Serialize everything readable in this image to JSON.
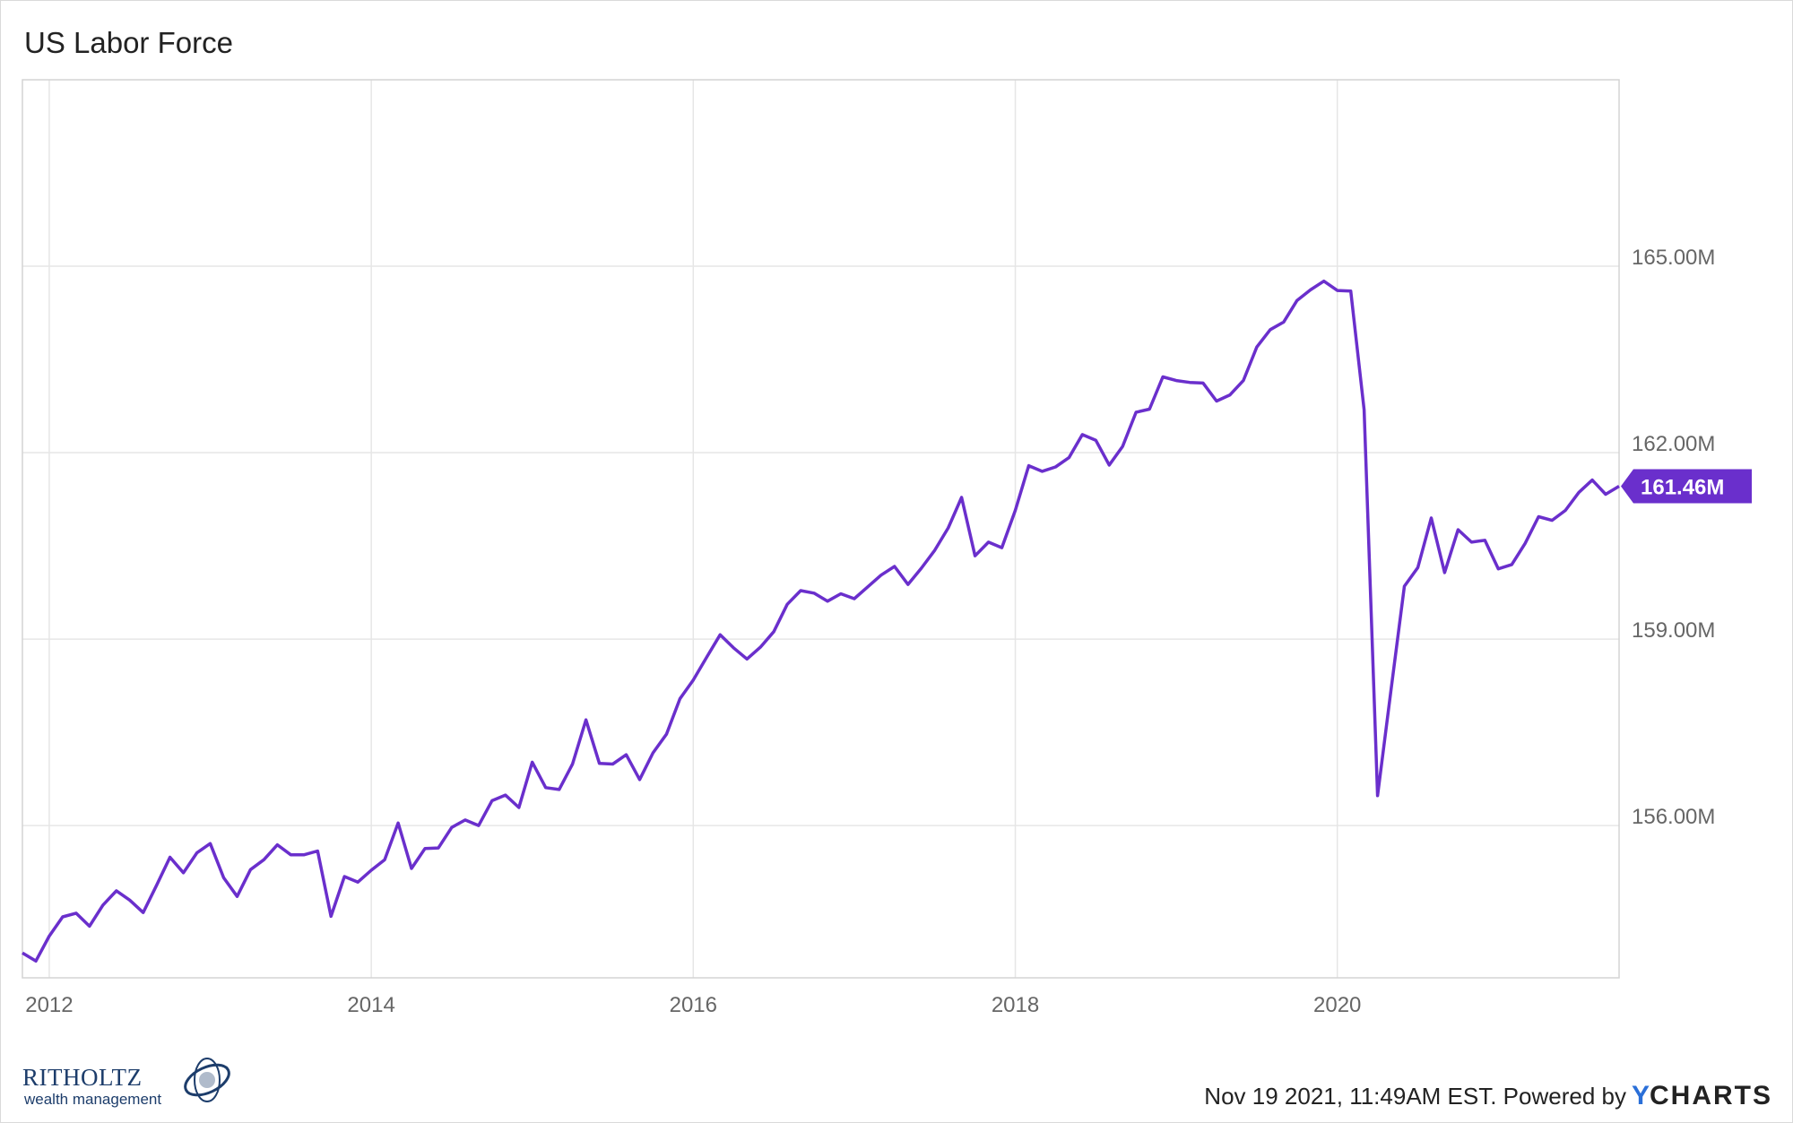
{
  "title": "US Labor Force",
  "footer": {
    "timestamp": "Nov 19 2021, 11:49AM EST. Powered by",
    "brand_y": "Y",
    "brand_rest": "CHARTS"
  },
  "logo": {
    "name": "RITHOLTZ",
    "subtitle": "wealth management"
  },
  "colors": {
    "series": "#6a2fcc",
    "grid": "#e6e6e6",
    "axis_text": "#666666",
    "brand_blue": "#2a6fd8"
  },
  "chart_data": {
    "type": "line",
    "title": "US Labor Force",
    "xlabel": "",
    "ylabel": "",
    "x_ticks": [
      "2012",
      "2014",
      "2016",
      "2018",
      "2020"
    ],
    "y_ticks": [
      "156.00M",
      "159.00M",
      "162.00M",
      "165.00M"
    ],
    "y_tick_values": [
      156,
      159,
      162,
      165
    ],
    "xlim": [
      "2011-11",
      "2021-10"
    ],
    "ylim": [
      153.55,
      168.0
    ],
    "grid": true,
    "last_value_label": "161.46M",
    "series": [
      {
        "name": "",
        "unit": "M",
        "x": [
          "2011-11",
          "2011-12",
          "2012-01",
          "2012-02",
          "2012-03",
          "2012-04",
          "2012-05",
          "2012-06",
          "2012-07",
          "2012-08",
          "2012-09",
          "2012-10",
          "2012-11",
          "2012-12",
          "2013-01",
          "2013-02",
          "2013-03",
          "2013-04",
          "2013-05",
          "2013-06",
          "2013-07",
          "2013-08",
          "2013-09",
          "2013-10",
          "2013-11",
          "2013-12",
          "2014-01",
          "2014-02",
          "2014-03",
          "2014-04",
          "2014-05",
          "2014-06",
          "2014-07",
          "2014-08",
          "2014-09",
          "2014-10",
          "2014-11",
          "2014-12",
          "2015-01",
          "2015-02",
          "2015-03",
          "2015-04",
          "2015-05",
          "2015-06",
          "2015-07",
          "2015-08",
          "2015-09",
          "2015-10",
          "2015-11",
          "2015-12",
          "2016-01",
          "2016-02",
          "2016-03",
          "2016-04",
          "2016-05",
          "2016-06",
          "2016-07",
          "2016-08",
          "2016-09",
          "2016-10",
          "2016-11",
          "2016-12",
          "2017-01",
          "2017-02",
          "2017-03",
          "2017-04",
          "2017-05",
          "2017-06",
          "2017-07",
          "2017-08",
          "2017-09",
          "2017-10",
          "2017-11",
          "2017-12",
          "2018-01",
          "2018-02",
          "2018-03",
          "2018-04",
          "2018-05",
          "2018-06",
          "2018-07",
          "2018-08",
          "2018-09",
          "2018-10",
          "2018-11",
          "2018-12",
          "2019-01",
          "2019-02",
          "2019-03",
          "2019-04",
          "2019-05",
          "2019-06",
          "2019-07",
          "2019-08",
          "2019-09",
          "2019-10",
          "2019-11",
          "2019-12",
          "2020-01",
          "2020-02",
          "2020-03",
          "2020-04",
          "2020-05",
          "2020-06",
          "2020-07",
          "2020-08",
          "2020-09",
          "2020-10",
          "2020-11",
          "2020-12",
          "2021-01",
          "2021-02",
          "2021-03",
          "2021-04",
          "2021-05",
          "2021-06",
          "2021-07",
          "2021-08",
          "2021-09",
          "2021-10"
        ],
        "values": [
          153.95,
          153.82,
          154.22,
          154.53,
          154.59,
          154.38,
          154.72,
          154.95,
          154.8,
          154.6,
          155.04,
          155.49,
          155.24,
          155.56,
          155.71,
          155.16,
          154.86,
          155.29,
          155.45,
          155.69,
          155.53,
          155.53,
          155.59,
          154.54,
          155.18,
          155.09,
          155.28,
          155.45,
          156.04,
          155.31,
          155.63,
          155.64,
          155.97,
          156.09,
          156.0,
          156.4,
          156.49,
          156.29,
          157.02,
          156.61,
          156.58,
          156.99,
          157.7,
          157.0,
          156.99,
          157.14,
          156.74,
          157.17,
          157.47,
          158.04,
          158.34,
          158.71,
          159.07,
          158.86,
          158.68,
          158.87,
          159.12,
          159.56,
          159.78,
          159.74,
          159.61,
          159.73,
          159.65,
          159.84,
          160.03,
          160.17,
          159.88,
          160.14,
          160.43,
          160.79,
          161.28,
          160.34,
          160.56,
          160.47,
          161.07,
          161.79,
          161.7,
          161.77,
          161.92,
          162.29,
          162.2,
          161.8,
          162.1,
          162.65,
          162.7,
          163.22,
          163.16,
          163.13,
          163.12,
          162.83,
          162.93,
          163.16,
          163.7,
          163.98,
          164.1,
          164.45,
          164.62,
          164.76,
          164.61,
          164.6,
          162.69,
          156.48,
          158.18,
          159.85,
          160.15,
          160.95,
          160.07,
          160.76,
          160.56,
          160.59,
          160.13,
          160.2,
          160.54,
          160.97,
          160.91,
          161.07,
          161.36,
          161.56,
          161.33,
          161.46
        ]
      }
    ]
  }
}
